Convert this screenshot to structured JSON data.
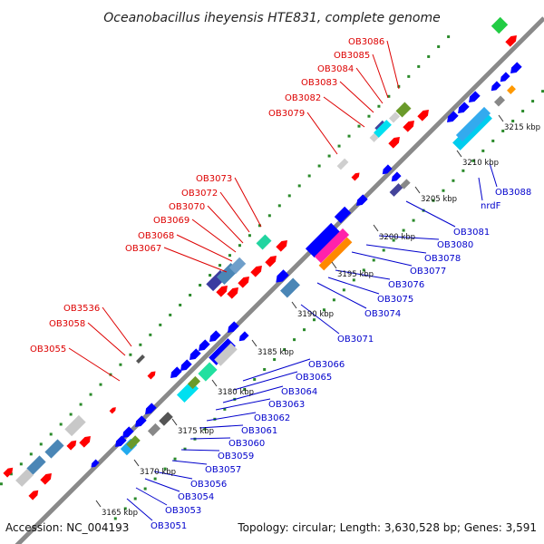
{
  "title": "Oceanobacillus iheyensis HTE831, complete genome",
  "footer": {
    "accession": "Accession: NC_004193",
    "summary": "Topology: circular; Length: 3,630,528 bp; Genes: 3,591"
  },
  "colors": {
    "forward_label": "#dd0000",
    "reverse_label": "#0000cc",
    "backbone": "#8a8a8a",
    "forward_gene": "#ff0000",
    "reverse_gene": "#0000ff",
    "dots": "#2a8a2a"
  },
  "ticks": [
    "3165 kbp",
    "3170 kbp",
    "3175 kbp",
    "3180 kbp",
    "3185 kbp",
    "3190 kbp",
    "3195 kbp",
    "3200 kbp",
    "3205 kbp",
    "3210 kbp",
    "3215 kbp"
  ],
  "forward_labels": [
    "OB3055",
    "OB3058",
    "OB3536",
    "OB3067",
    "OB3068",
    "OB3069",
    "OB3070",
    "OB3072",
    "OB3073",
    "OB3079",
    "OB3082",
    "OB3083",
    "OB3084",
    "OB3085",
    "OB3086"
  ],
  "reverse_labels": [
    "OB3051",
    "OB3053",
    "OB3054",
    "OB3056",
    "OB3057",
    "OB3059",
    "OB3060",
    "OB3061",
    "OB3062",
    "OB3063",
    "OB3064",
    "OB3065",
    "OB3066",
    "OB3071",
    "OB3074",
    "OB3075",
    "OB3076",
    "OB3077",
    "OB3078",
    "OB3080",
    "OB3081",
    "nrdF",
    "OB3088"
  ]
}
